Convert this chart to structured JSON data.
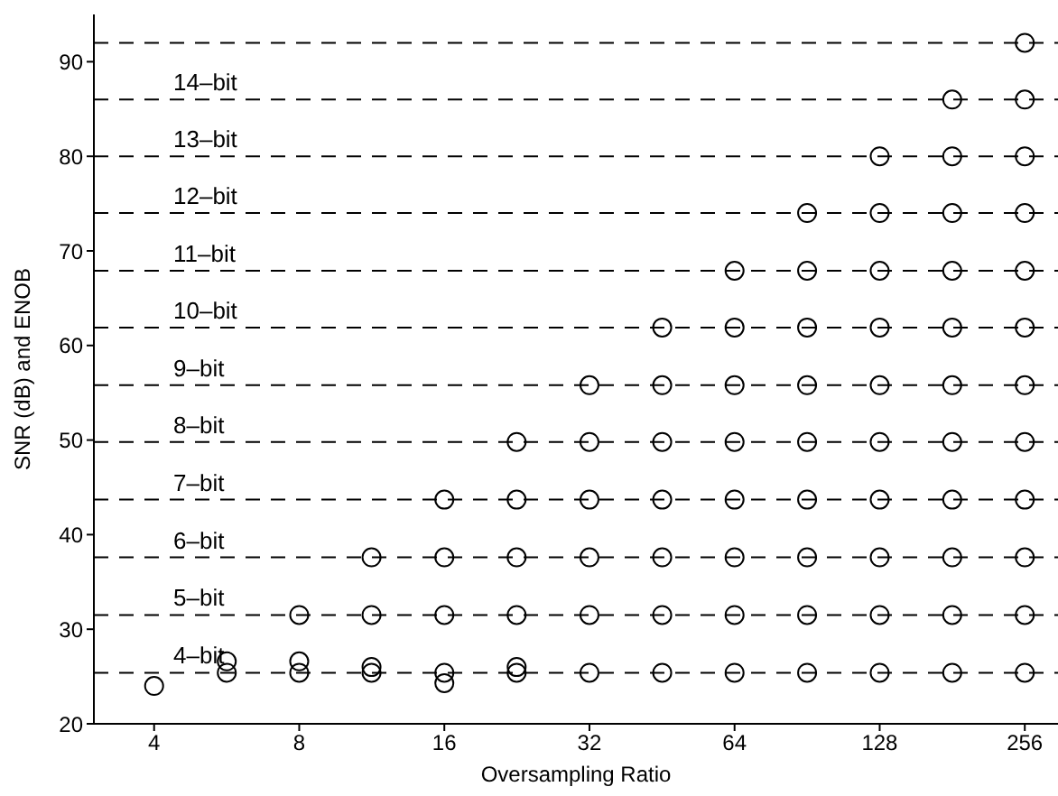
{
  "chart_data": {
    "type": "scatter",
    "xlabel": "Oversampling Ratio",
    "ylabel": "SNR (dB) and ENOB",
    "log": "x",
    "xlim": [
      3,
      300
    ],
    "xticks": [
      4,
      8,
      16,
      32,
      64,
      128,
      256
    ],
    "ylim": [
      20,
      95
    ],
    "yticks": [
      20,
      30,
      40,
      50,
      60,
      70,
      80,
      90
    ],
    "grid": false,
    "legend": false,
    "marker": "circle",
    "series": [
      {
        "color": "#000000",
        "x": [
          4,
          5.66,
          5.66,
          8,
          8,
          8,
          11.3,
          11.3,
          11.3,
          11.3,
          16,
          16,
          16,
          16,
          16,
          22.6,
          22.6,
          22.6,
          22.6,
          22.6,
          22.6,
          32,
          32,
          32,
          32,
          32,
          32,
          45.3,
          45.3,
          45.3,
          45.3,
          45.3,
          45.3,
          45.3,
          64,
          64,
          64,
          64,
          64,
          64,
          64,
          64,
          90.5,
          90.5,
          90.5,
          90.5,
          90.5,
          90.5,
          90.5,
          90.5,
          90.5,
          128,
          128,
          128,
          128,
          128,
          128,
          128,
          128,
          128,
          128,
          181,
          181,
          181,
          181,
          181,
          181,
          181,
          181,
          181,
          181,
          181,
          256,
          256,
          256,
          256,
          256,
          256,
          256,
          256,
          256,
          256,
          256,
          256
        ],
        "values": [
          24.0,
          26.6,
          25.4,
          26.6,
          25.4,
          31.5,
          26.0,
          25.4,
          31.5,
          37.6,
          25.4,
          24.3,
          31.5,
          37.6,
          43.7,
          26.0,
          25.4,
          31.5,
          37.6,
          43.7,
          49.8,
          25.4,
          31.5,
          37.6,
          43.7,
          49.8,
          55.8,
          25.4,
          31.5,
          37.6,
          43.7,
          49.8,
          55.8,
          61.9,
          25.4,
          31.5,
          37.6,
          43.7,
          49.8,
          55.8,
          61.9,
          67.9,
          25.4,
          31.5,
          37.6,
          43.7,
          49.8,
          55.8,
          61.9,
          67.9,
          74.0,
          25.4,
          31.5,
          37.6,
          43.7,
          49.8,
          55.8,
          61.9,
          67.9,
          74.0,
          80.0,
          25.4,
          31.5,
          37.6,
          43.7,
          49.8,
          55.8,
          61.9,
          67.9,
          74.0,
          80.0,
          86.0,
          25.4,
          31.5,
          37.6,
          43.7,
          49.8,
          55.8,
          61.9,
          67.9,
          74.0,
          80.0,
          86.0,
          92.0
        ]
      }
    ],
    "ref_lines": [
      {
        "axis": "y",
        "value": 25.4,
        "label": "4–bit",
        "line_style": "dashed",
        "color": "#000000"
      },
      {
        "axis": "y",
        "value": 31.5,
        "label": "5–bit",
        "line_style": "dashed",
        "color": "#000000"
      },
      {
        "axis": "y",
        "value": 37.6,
        "label": "6–bit",
        "line_style": "dashed",
        "color": "#000000"
      },
      {
        "axis": "y",
        "value": 43.7,
        "label": "7–bit",
        "line_style": "dashed",
        "color": "#000000"
      },
      {
        "axis": "y",
        "value": 49.8,
        "label": "8–bit",
        "line_style": "dashed",
        "color": "#000000"
      },
      {
        "axis": "y",
        "value": 55.8,
        "label": "9–bit",
        "line_style": "dashed",
        "color": "#000000"
      },
      {
        "axis": "y",
        "value": 61.9,
        "label": "10–bit",
        "line_style": "dashed",
        "color": "#000000"
      },
      {
        "axis": "y",
        "value": 67.9,
        "label": "11–bit",
        "line_style": "dashed",
        "color": "#000000"
      },
      {
        "axis": "y",
        "value": 74.0,
        "label": "12–bit",
        "line_style": "dashed",
        "color": "#000000"
      },
      {
        "axis": "y",
        "value": 80.0,
        "label": "13–bit",
        "line_style": "dashed",
        "color": "#000000"
      },
      {
        "axis": "y",
        "value": 86.0,
        "label": "14–bit",
        "line_style": "dashed",
        "color": "#000000"
      },
      {
        "axis": "y",
        "value": 92.0,
        "label": null,
        "line_style": "dashed",
        "color": "#000000"
      }
    ]
  }
}
